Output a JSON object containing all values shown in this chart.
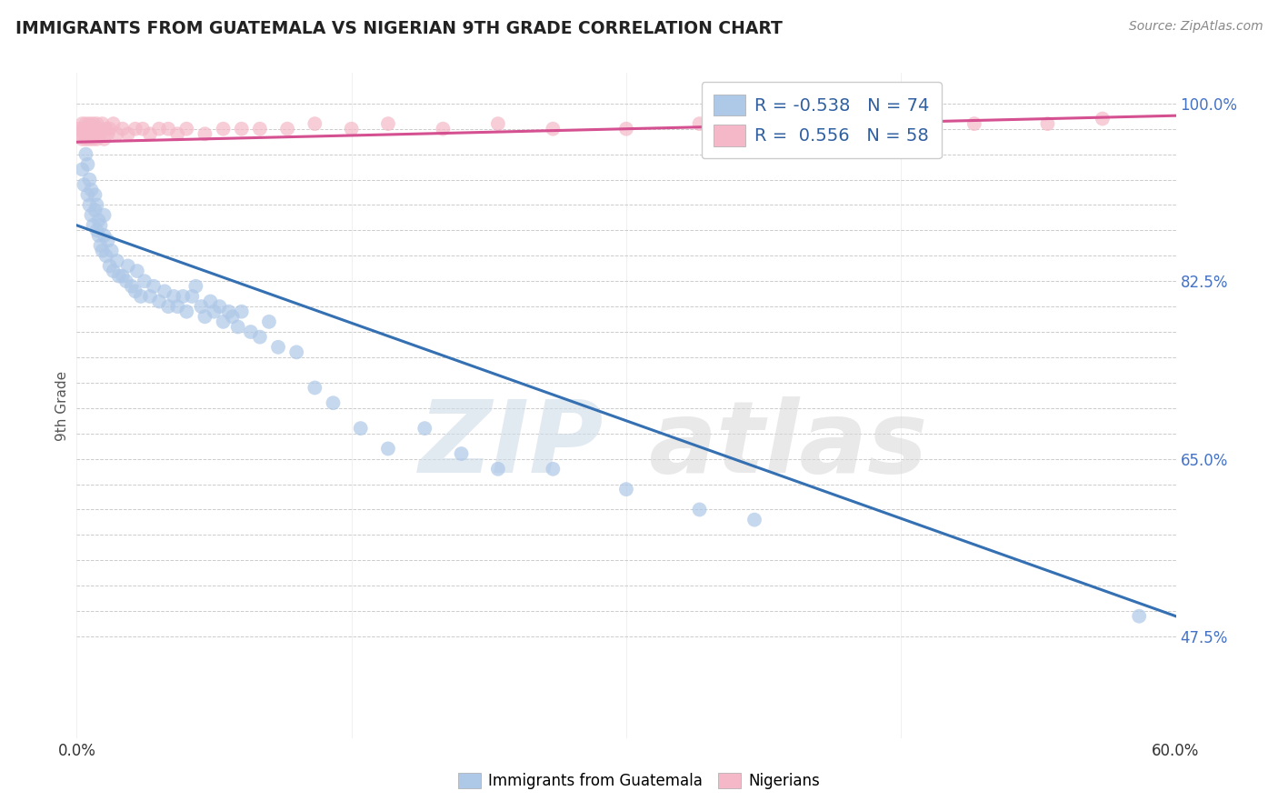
{
  "title": "IMMIGRANTS FROM GUATEMALA VS NIGERIAN 9TH GRADE CORRELATION CHART",
  "source": "Source: ZipAtlas.com",
  "ylabel": "9th Grade",
  "xlim": [
    0.0,
    0.6
  ],
  "ylim": [
    0.375,
    1.03
  ],
  "legend_blue_R": "-0.538",
  "legend_blue_N": "74",
  "legend_pink_R": "0.556",
  "legend_pink_N": "58",
  "legend_blue_label": "Immigrants from Guatemala",
  "legend_pink_label": "Nigerians",
  "blue_color": "#aec8e8",
  "pink_color": "#f4b8c8",
  "blue_line_color": "#3470b2",
  "pink_line_color": "#d45090",
  "background_color": "#ffffff",
  "grid_color": "#cccccc",
  "watermark_zip": "ZIP",
  "watermark_atlas": "atlas",
  "blue_x": [
    0.003,
    0.004,
    0.005,
    0.006,
    0.006,
    0.007,
    0.007,
    0.008,
    0.008,
    0.009,
    0.01,
    0.01,
    0.011,
    0.011,
    0.012,
    0.012,
    0.013,
    0.013,
    0.014,
    0.015,
    0.015,
    0.016,
    0.017,
    0.018,
    0.019,
    0.02,
    0.022,
    0.023,
    0.025,
    0.027,
    0.028,
    0.03,
    0.032,
    0.033,
    0.035,
    0.037,
    0.04,
    0.042,
    0.045,
    0.048,
    0.05,
    0.053,
    0.055,
    0.058,
    0.06,
    0.063,
    0.065,
    0.068,
    0.07,
    0.073,
    0.075,
    0.078,
    0.08,
    0.083,
    0.085,
    0.088,
    0.09,
    0.095,
    0.1,
    0.105,
    0.11,
    0.12,
    0.13,
    0.14,
    0.155,
    0.17,
    0.19,
    0.21,
    0.23,
    0.26,
    0.3,
    0.34,
    0.37,
    0.58
  ],
  "blue_y": [
    0.935,
    0.92,
    0.95,
    0.91,
    0.94,
    0.9,
    0.925,
    0.89,
    0.915,
    0.88,
    0.91,
    0.895,
    0.875,
    0.9,
    0.87,
    0.885,
    0.86,
    0.88,
    0.855,
    0.87,
    0.89,
    0.85,
    0.865,
    0.84,
    0.855,
    0.835,
    0.845,
    0.83,
    0.83,
    0.825,
    0.84,
    0.82,
    0.815,
    0.835,
    0.81,
    0.825,
    0.81,
    0.82,
    0.805,
    0.815,
    0.8,
    0.81,
    0.8,
    0.81,
    0.795,
    0.81,
    0.82,
    0.8,
    0.79,
    0.805,
    0.795,
    0.8,
    0.785,
    0.795,
    0.79,
    0.78,
    0.795,
    0.775,
    0.77,
    0.785,
    0.76,
    0.755,
    0.72,
    0.705,
    0.68,
    0.66,
    0.68,
    0.655,
    0.64,
    0.64,
    0.62,
    0.6,
    0.59,
    0.495
  ],
  "pink_x": [
    0.001,
    0.002,
    0.003,
    0.003,
    0.004,
    0.004,
    0.005,
    0.005,
    0.006,
    0.006,
    0.007,
    0.007,
    0.008,
    0.008,
    0.009,
    0.009,
    0.01,
    0.01,
    0.011,
    0.011,
    0.012,
    0.012,
    0.013,
    0.014,
    0.015,
    0.016,
    0.017,
    0.018,
    0.02,
    0.022,
    0.025,
    0.028,
    0.032,
    0.036,
    0.04,
    0.045,
    0.05,
    0.055,
    0.06,
    0.07,
    0.08,
    0.09,
    0.1,
    0.115,
    0.13,
    0.15,
    0.17,
    0.2,
    0.23,
    0.26,
    0.3,
    0.34,
    0.38,
    0.41,
    0.45,
    0.49,
    0.53,
    0.56
  ],
  "pink_y": [
    0.975,
    0.97,
    0.98,
    0.965,
    0.975,
    0.97,
    0.98,
    0.965,
    0.975,
    0.97,
    0.98,
    0.965,
    0.975,
    0.97,
    0.965,
    0.98,
    0.97,
    0.975,
    0.965,
    0.98,
    0.97,
    0.975,
    0.97,
    0.98,
    0.965,
    0.975,
    0.97,
    0.975,
    0.98,
    0.97,
    0.975,
    0.97,
    0.975,
    0.975,
    0.97,
    0.975,
    0.975,
    0.97,
    0.975,
    0.97,
    0.975,
    0.975,
    0.975,
    0.975,
    0.98,
    0.975,
    0.98,
    0.975,
    0.98,
    0.975,
    0.975,
    0.98,
    0.975,
    0.98,
    0.975,
    0.98,
    0.98,
    0.985
  ],
  "blue_line_x0": 0.0,
  "blue_line_y0": 0.88,
  "blue_line_x1": 0.6,
  "blue_line_y1": 0.495,
  "pink_line_x0": 0.0,
  "pink_line_y0": 0.962,
  "pink_line_x1": 0.6,
  "pink_line_y1": 0.988,
  "ytick_positions": [
    0.475,
    0.65,
    0.825,
    1.0
  ],
  "ytick_labels": [
    "47.5%",
    "65.0%",
    "82.5%",
    "100.0%"
  ],
  "xtick_positions": [
    0.0,
    0.6
  ],
  "xtick_labels": [
    "0.0%",
    "60.0%"
  ]
}
